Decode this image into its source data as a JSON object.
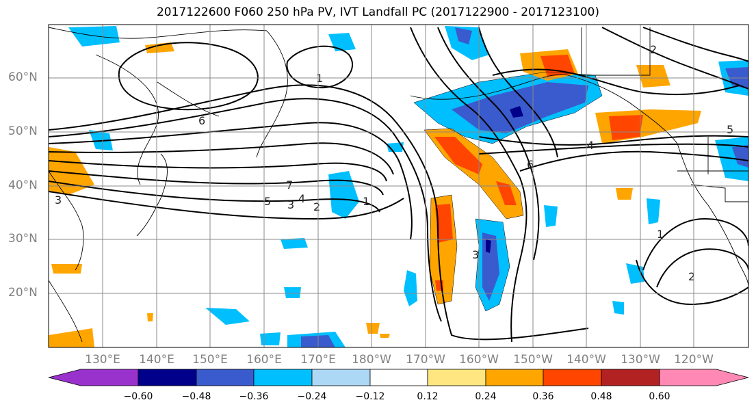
{
  "title": "2017122600 F060 250 hPa PV, IVT Landfall PC (2017122900 - 2017123100)",
  "lat_labels": [
    "60°N",
    "50°N",
    "40°N",
    "30°N",
    "20°N"
  ],
  "lon_labels": [
    "130°E",
    "140°E",
    "150°E",
    "160°E",
    "170°E",
    "180°W",
    "170°W",
    "160°W",
    "150°W",
    "140°W",
    "130°W",
    "120°W"
  ],
  "colorbar": {
    "ticks": [
      "−0.60",
      "−0.48",
      "−0.36",
      "−0.24",
      "−0.12",
      "0.12",
      "0.24",
      "0.36",
      "0.48",
      "0.60"
    ],
    "colors": [
      "#9932cc",
      "#00008b",
      "#3a5bcd",
      "#00bfff",
      "#add8f5",
      "#ffffff",
      "#ffe680",
      "#ffa500",
      "#ff4500",
      "#b22222",
      "#ff88b4"
    ]
  },
  "pv_contour_labels": [
    "1",
    "2",
    "3",
    "4",
    "5",
    "6",
    "7",
    "6",
    "5",
    "4",
    "3",
    "2",
    "1",
    "3",
    "2",
    "1"
  ]
}
